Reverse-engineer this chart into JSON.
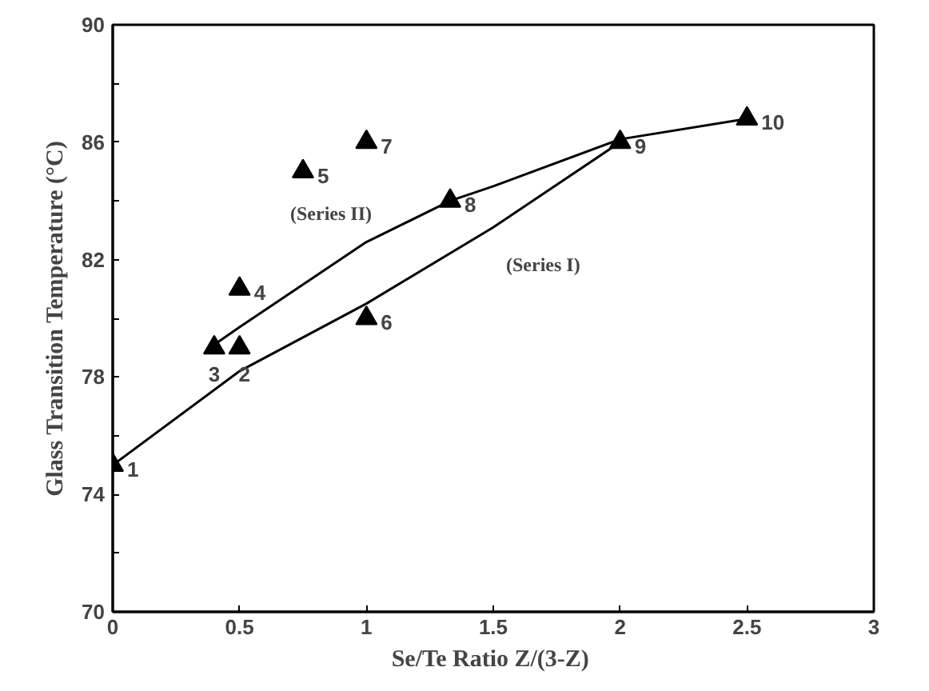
{
  "chart_data": {
    "type": "scatter",
    "xlabel": "Se/Te Ratio  Z/(3-Z)",
    "ylabel": "Glass Transition Temperature (°C)",
    "xlim": [
      0,
      3
    ],
    "ylim": [
      70,
      90
    ],
    "xticks": [
      0,
      0.5,
      1,
      1.5,
      2,
      2.5,
      3
    ],
    "yticks": [
      70,
      {
        "value": 72,
        "label": null
      },
      74,
      {
        "value": 76,
        "label": null
      },
      78,
      {
        "value": 80,
        "label": null
      },
      82,
      {
        "value": 84,
        "label": null
      },
      86,
      {
        "value": 88,
        "label": null
      },
      90
    ],
    "grid": false,
    "series": [
      {
        "marker": "triangle",
        "color": "#000000",
        "x": [
          0,
          0.5,
          0.4,
          0.5,
          0.75,
          1,
          1,
          1.33,
          2,
          2.5
        ],
        "values": [
          75,
          79,
          79,
          81,
          85,
          80,
          86,
          84,
          86,
          86.8
        ]
      },
      {
        "type": "line",
        "marker": "none",
        "color": "#000000",
        "x": [
          0,
          0.5,
          1,
          1.5,
          2
        ],
        "values": [
          75,
          78.2,
          80.5,
          83.1,
          86
        ]
      },
      {
        "type": "line",
        "marker": "none",
        "color": "#000000",
        "x": [
          0.4,
          0.5,
          1,
          1.33,
          1.5,
          2,
          2.5
        ],
        "values": [
          79.1,
          79.7,
          82.6,
          84,
          84.5,
          86.1,
          86.8
        ]
      }
    ],
    "annotations": [
      {
        "text": "1",
        "x": 0,
        "y": 75
      },
      {
        "text": "2",
        "x": 0.5,
        "y": 79
      },
      {
        "text": "3",
        "x": 0.4,
        "y": 79
      },
      {
        "text": "4",
        "x": 0.5,
        "y": 81
      },
      {
        "text": "5",
        "x": 0.75,
        "y": 85
      },
      {
        "text": "6",
        "x": 1,
        "y": 80
      },
      {
        "text": "7",
        "x": 1,
        "y": 86
      },
      {
        "text": "8",
        "x": 1.33,
        "y": 84
      },
      {
        "text": "9",
        "x": 2,
        "y": 86
      },
      {
        "text": "10",
        "x": 2.5,
        "y": 86.8
      },
      "(Series II)",
      "(Series I)"
    ]
  }
}
